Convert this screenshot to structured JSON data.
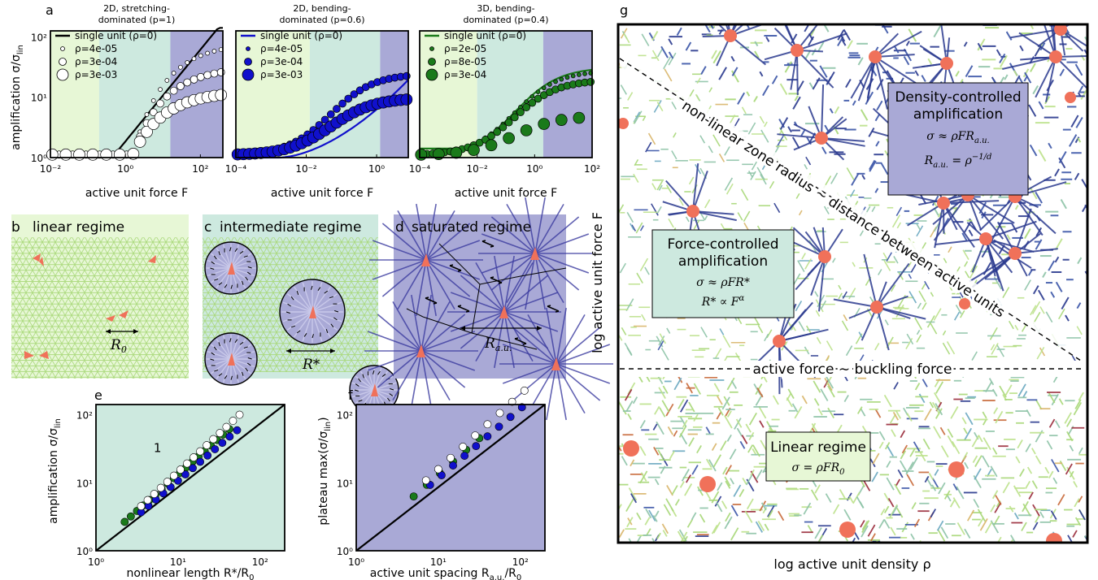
{
  "panel_labels": {
    "a": "a",
    "b": "b",
    "c": "c",
    "d": "d",
    "e": "e",
    "f": "f",
    "g": "g"
  },
  "colors": {
    "linear": "#e7f7d6",
    "intermediate": "#cde9df",
    "saturated": "#a9a9d6",
    "stretching": "#000000",
    "bending2d": "#1010cc",
    "bending3d": "#1a7a1a",
    "active_unit": "#f0715a",
    "network_green": "#a8d878",
    "network_blue": "#2b3a8f"
  },
  "panel_a": {
    "subtitles": [
      [
        "2D, stretching-",
        "dominated (p=1)"
      ],
      [
        "2D, bending-",
        "dominated (p=0.6)"
      ],
      [
        "3D, bending-",
        "dominated (p=0.4)"
      ]
    ],
    "ylabel": "amplification σ/σ",
    "ylabel_sub": "lin",
    "xlabel": "active unit force F",
    "yticks": [
      "10⁰",
      "10¹",
      "10²"
    ],
    "xticks": [
      [
        "10⁻²",
        "10⁰",
        "10²"
      ],
      [
        "10⁻⁴",
        "10⁻²",
        "10⁰"
      ],
      [
        "10⁻⁴",
        "10⁻²",
        "10⁰",
        "10²"
      ]
    ],
    "legends": [
      [
        "single unit (ρ=0)",
        "ρ=4e-05",
        "ρ=3e-04",
        "ρ=3e-03"
      ],
      [
        "single unit (ρ=0)",
        "ρ=4e-05",
        "ρ=3e-04",
        "ρ=3e-03"
      ],
      [
        "single unit (ρ=0)",
        "ρ=2e-05",
        "ρ=8e-05",
        "ρ=3e-04"
      ]
    ]
  },
  "panel_b": {
    "title": "linear regime",
    "length_label": "R",
    "length_sub": "0"
  },
  "panel_c": {
    "title": "intermediate regime",
    "length_label": "R*"
  },
  "panel_d": {
    "title": "saturated regime",
    "length_label": "R",
    "length_sub": "a.u."
  },
  "panel_e": {
    "ylabel": "amplification σ/σ",
    "ylabel_sub": "lin",
    "xlabel": "nonlinear length R*/R",
    "xlabel_sub": "0",
    "slope_label": "1",
    "xticks": [
      "10⁰",
      "10¹",
      "10²"
    ],
    "yticks": [
      "10⁰",
      "10¹",
      "10²"
    ]
  },
  "panel_f": {
    "ylabel": "plateau max(σ/σ",
    "ylabel_sub": "lin",
    "ylabel_end": ")",
    "xlabel": "active unit spacing R",
    "xlabel_sub": "a.u.",
    "xlabel_end": "/R",
    "xlabel_sub2": "0",
    "xticks": [
      "10⁰",
      "10¹",
      "10²"
    ],
    "yticks": [
      "10⁰",
      "10¹",
      "10²"
    ]
  },
  "panel_g": {
    "ylabel": "log active unit force F",
    "xlabel": "log active unit density ρ",
    "diag_label": "non-linear zone radius ∼ distance between active units",
    "horiz_label": "active force ∼ buckling force",
    "density_box": [
      "Density-controlled",
      "amplification",
      "σ ≈ ρFR",
      "a.u.",
      "R",
      "a.u.",
      "= ρ",
      "−1/d"
    ],
    "force_box": [
      "Force-controlled",
      "amplification",
      "σ ≈ ρFR*",
      "R* ∝ F",
      "α"
    ],
    "linear_box": [
      "Linear regime",
      "σ = ρFR",
      "0"
    ]
  }
}
